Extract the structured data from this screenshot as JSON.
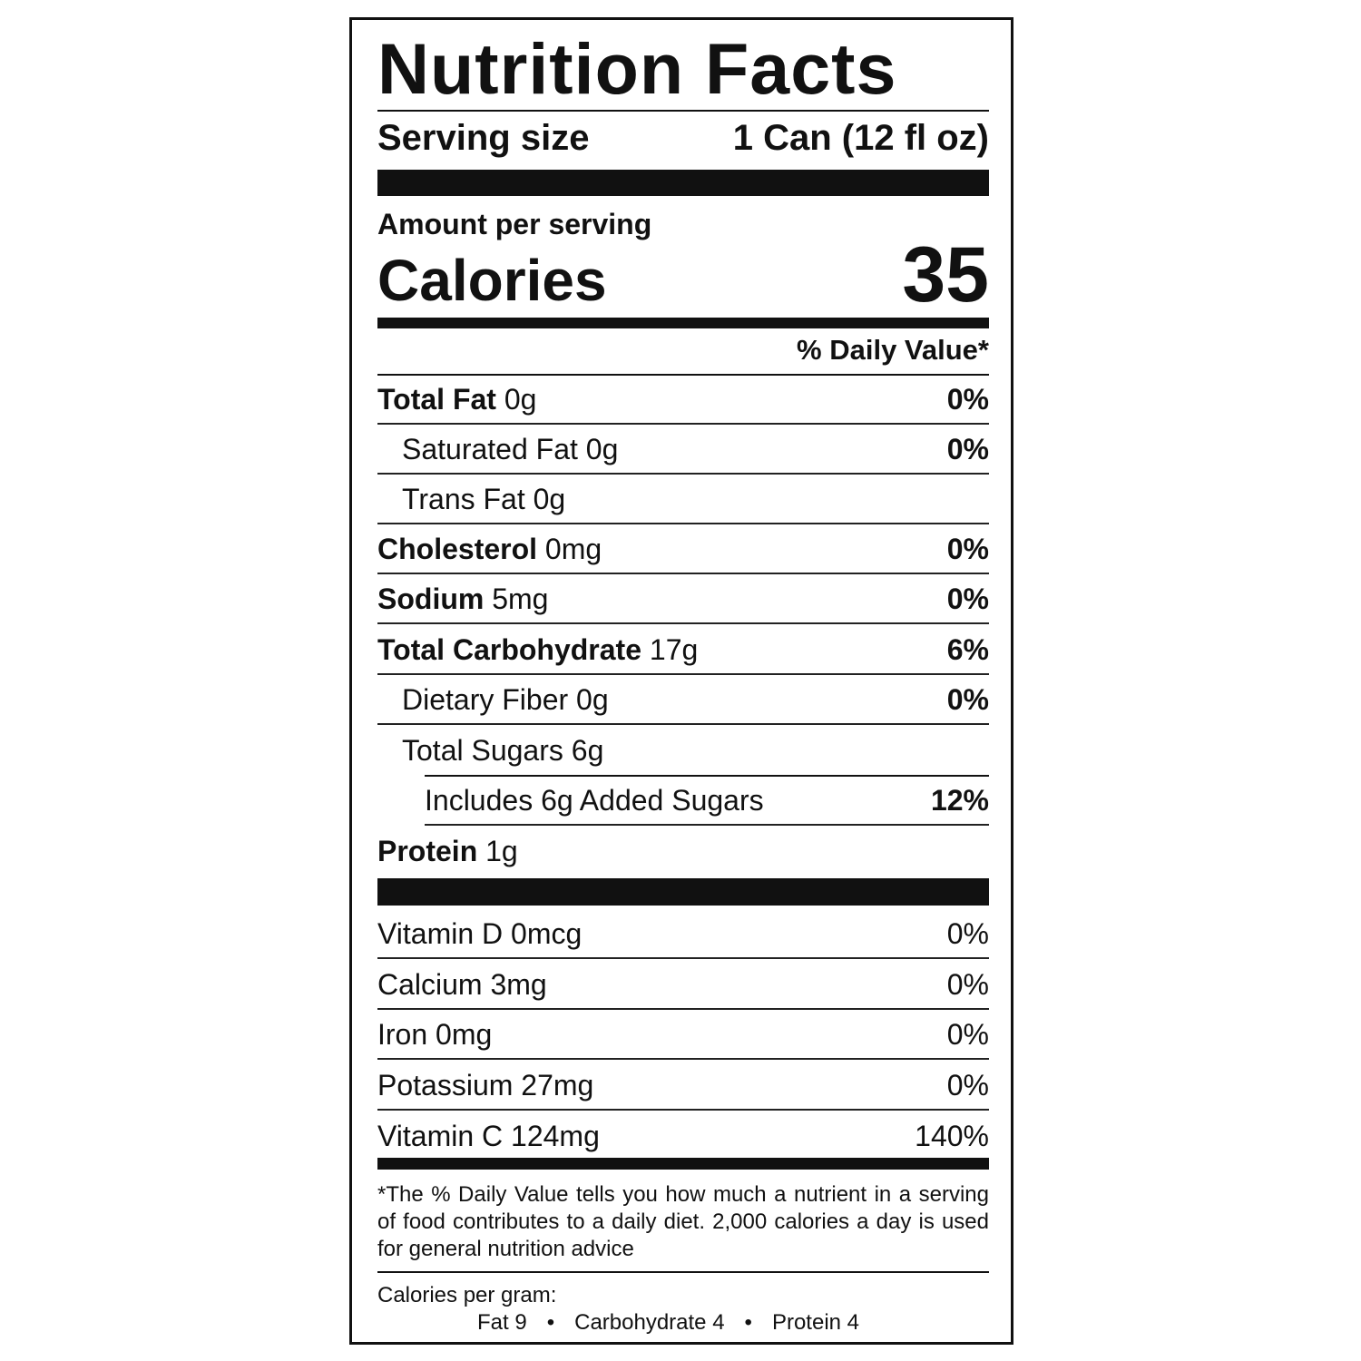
{
  "title": "Nutrition Facts",
  "serving": {
    "label": "Serving size",
    "value": "1 Can (12 fl oz)"
  },
  "amount_per_serving": "Amount per serving",
  "calories": {
    "label": "Calories",
    "value": "35"
  },
  "dv_header": "% Daily Value*",
  "nutrients": [
    {
      "name": "Total Fat",
      "amount": "0g",
      "dv": "0%"
    },
    {
      "name": "Saturated Fat",
      "amount": "0g",
      "dv": "0%"
    },
    {
      "name": "Trans Fat",
      "amount": "0g",
      "dv": ""
    },
    {
      "name": "Cholesterol",
      "amount": "0mg",
      "dv": "0%"
    },
    {
      "name": "Sodium",
      "amount": "5mg",
      "dv": "0%"
    },
    {
      "name": "Total Carbohydrate",
      "amount": "17g",
      "dv": "6%"
    },
    {
      "name": "Dietary Fiber",
      "amount": "0g",
      "dv": "0%"
    },
    {
      "name": "Total Sugars",
      "amount": "6g",
      "dv": ""
    },
    {
      "name": "Includes 6g Added Sugars",
      "amount": "",
      "dv": "12%"
    },
    {
      "name": "Protein",
      "amount": "1g",
      "dv": ""
    }
  ],
  "vitamins": [
    {
      "name": "Vitamin D 0mcg",
      "dv": "0%"
    },
    {
      "name": "Calcium 3mg",
      "dv": "0%"
    },
    {
      "name": "Iron 0mg",
      "dv": "0%"
    },
    {
      "name": "Potassium 27mg",
      "dv": "0%"
    },
    {
      "name": "Vitamin C 124mg",
      "dv": "140%"
    }
  ],
  "footnote": "*The % Daily Value tells you how much a nutrient in a serving of food contributes to a daily diet. 2,000 calories a day is used for general nutrition advice",
  "calories_per_gram": {
    "label": "Calories per gram:",
    "fat": "Fat 9",
    "carb": "Carbohydrate 4",
    "protein": "Protein 4",
    "separator": "•"
  }
}
